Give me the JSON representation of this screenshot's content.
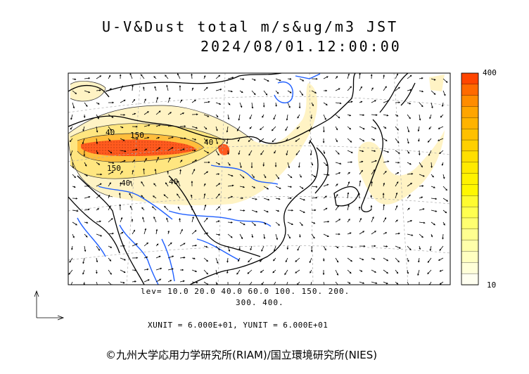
{
  "title_line1": "U-V&Dust total m/s&ug/m3 JST",
  "title_line2": "2024/08/01.12:00:00",
  "levels_line1": "lev= 10.0 20.0 40.0 60.0 100. 150. 200.",
  "levels_line2": "300. 400.",
  "units_text": "XUNIT = 6.000E+01, YUNIT = 6.000E+01",
  "credit": "©九州大学応用力学研究所(RIAM)/国立環境研究所(NIES)",
  "colorbar": {
    "max_label": "400",
    "min_label": "10",
    "colors": [
      "#ff4500",
      "#ff6a00",
      "#ff8c00",
      "#ffa500",
      "#ffb300",
      "#ffc000",
      "#ffd000",
      "#ffdf00",
      "#ffea00",
      "#fff200",
      "#fff700",
      "#fffb30",
      "#ffff50",
      "#ffff70",
      "#ffff90",
      "#ffffaa",
      "#ffffc0",
      "#ffffd8",
      "#fffff0"
    ]
  },
  "contour_labels": [
    "40",
    "150",
    "40",
    "150",
    "40",
    "40"
  ],
  "colors": {
    "coast": "#000000",
    "river": "#1f5fff",
    "grid": "#aaaaaa",
    "dust_low": "#fff5c0",
    "dust_mid": "#ffe066",
    "dust_high": "#ff5a1e"
  }
}
